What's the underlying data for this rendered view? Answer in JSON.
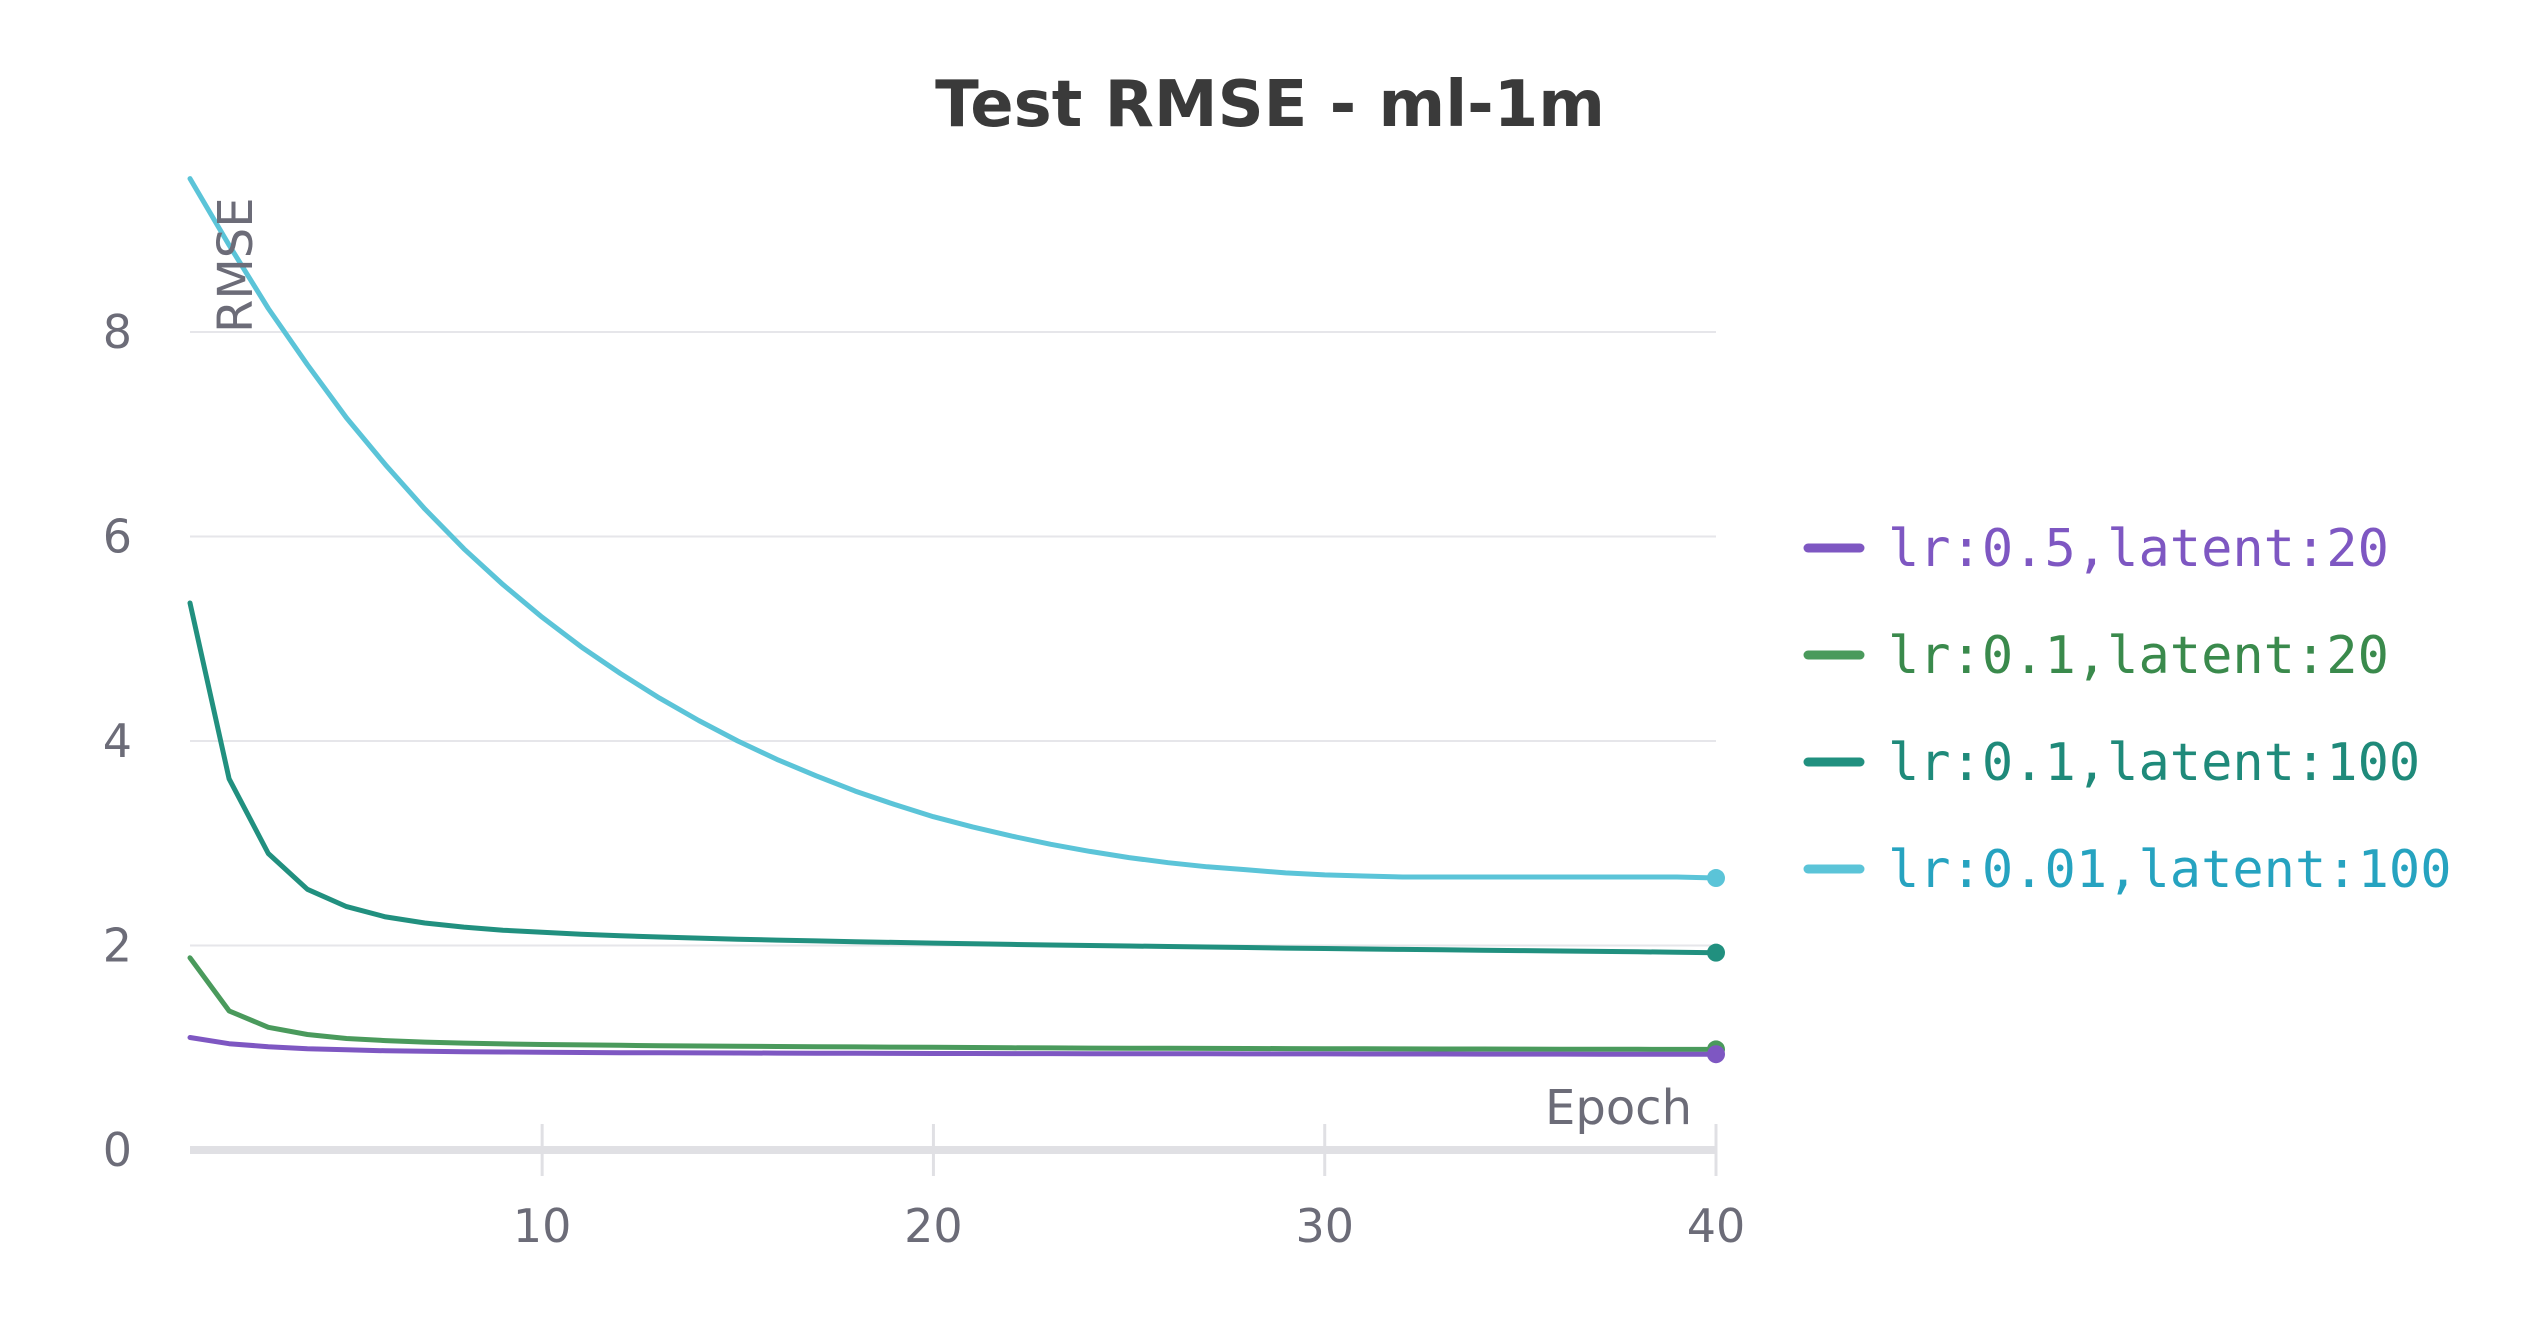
{
  "chart_data": {
    "type": "line",
    "title": "Test RMSE - ml-1m",
    "xlabel": "Epoch",
    "ylabel": "RMSE",
    "xlim": [
      1,
      40
    ],
    "ylim": [
      0,
      9.5
    ],
    "x_ticks": [
      10,
      20,
      30,
      40
    ],
    "y_ticks": [
      0,
      2,
      4,
      6,
      8
    ],
    "grid": true,
    "legend_position": "right",
    "series": [
      {
        "name": "lr:0.5,latent:20",
        "color": "#7e57c2",
        "label_color": "#7e57c2",
        "x": [
          1,
          2,
          3,
          4,
          5,
          6,
          7,
          8,
          9,
          10,
          11,
          12,
          13,
          14,
          15,
          16,
          17,
          18,
          19,
          20,
          21,
          22,
          23,
          24,
          25,
          26,
          27,
          28,
          29,
          30,
          31,
          32,
          33,
          34,
          35,
          36,
          37,
          38,
          39,
          40
        ],
        "values": [
          1.1,
          1.04,
          1.01,
          0.99,
          0.98,
          0.97,
          0.965,
          0.96,
          0.958,
          0.956,
          0.954,
          0.952,
          0.951,
          0.95,
          0.949,
          0.948,
          0.947,
          0.946,
          0.945,
          0.944,
          0.944,
          0.943,
          0.943,
          0.942,
          0.942,
          0.941,
          0.941,
          0.94,
          0.94,
          0.94,
          0.939,
          0.939,
          0.939,
          0.938,
          0.938,
          0.938,
          0.937,
          0.937,
          0.937,
          0.937
        ]
      },
      {
        "name": "lr:0.1,latent:20",
        "color": "#4a9a5c",
        "label_color": "#3a8a4c",
        "x": [
          1,
          2,
          3,
          4,
          5,
          6,
          7,
          8,
          9,
          10,
          11,
          12,
          13,
          14,
          15,
          16,
          17,
          18,
          19,
          20,
          21,
          22,
          23,
          24,
          25,
          26,
          27,
          28,
          29,
          30,
          31,
          32,
          33,
          34,
          35,
          36,
          37,
          38,
          39,
          40
        ],
        "values": [
          1.88,
          1.36,
          1.2,
          1.13,
          1.09,
          1.07,
          1.055,
          1.045,
          1.038,
          1.032,
          1.028,
          1.024,
          1.02,
          1.017,
          1.015,
          1.012,
          1.01,
          1.008,
          1.006,
          1.004,
          1.002,
          1.0,
          0.999,
          0.997,
          0.996,
          0.995,
          0.994,
          0.993,
          0.992,
          0.991,
          0.99,
          0.989,
          0.988,
          0.988,
          0.987,
          0.986,
          0.986,
          0.985,
          0.984,
          0.984
        ]
      },
      {
        "name": "lr:0.1,latent:100",
        "color": "#21907f",
        "label_color": "#1f8a7a",
        "x": [
          1,
          2,
          3,
          4,
          5,
          6,
          7,
          8,
          9,
          10,
          11,
          12,
          13,
          14,
          15,
          16,
          17,
          18,
          19,
          20,
          21,
          22,
          23,
          24,
          25,
          26,
          27,
          28,
          29,
          30,
          31,
          32,
          33,
          34,
          35,
          36,
          37,
          38,
          39,
          40
        ],
        "values": [
          5.35,
          3.63,
          2.9,
          2.55,
          2.38,
          2.28,
          2.22,
          2.18,
          2.15,
          2.13,
          2.11,
          2.095,
          2.083,
          2.072,
          2.062,
          2.053,
          2.045,
          2.037,
          2.03,
          2.023,
          2.017,
          2.011,
          2.005,
          2.0,
          1.995,
          1.99,
          1.985,
          1.98,
          1.975,
          1.971,
          1.966,
          1.962,
          1.958,
          1.954,
          1.95,
          1.946,
          1.942,
          1.938,
          1.934,
          1.93
        ]
      },
      {
        "name": "lr:0.01,latent:100",
        "color": "#5bc4d8",
        "label_color": "#26a3c0",
        "x": [
          1,
          2,
          3,
          4,
          5,
          6,
          7,
          8,
          9,
          10,
          11,
          12,
          13,
          14,
          15,
          16,
          17,
          18,
          19,
          20,
          21,
          22,
          23,
          24,
          25,
          26,
          27,
          28,
          29,
          30,
          31,
          32,
          33,
          34,
          35,
          36,
          37,
          38,
          39,
          40
        ],
        "values": [
          9.5,
          8.85,
          8.23,
          7.68,
          7.16,
          6.7,
          6.27,
          5.88,
          5.53,
          5.21,
          4.92,
          4.66,
          4.42,
          4.2,
          4.0,
          3.82,
          3.66,
          3.51,
          3.38,
          3.26,
          3.16,
          3.07,
          2.99,
          2.92,
          2.86,
          2.81,
          2.77,
          2.74,
          2.71,
          2.69,
          2.68,
          2.67,
          2.67,
          2.67,
          2.67,
          2.67,
          2.67,
          2.67,
          2.67,
          2.66
        ]
      }
    ]
  }
}
